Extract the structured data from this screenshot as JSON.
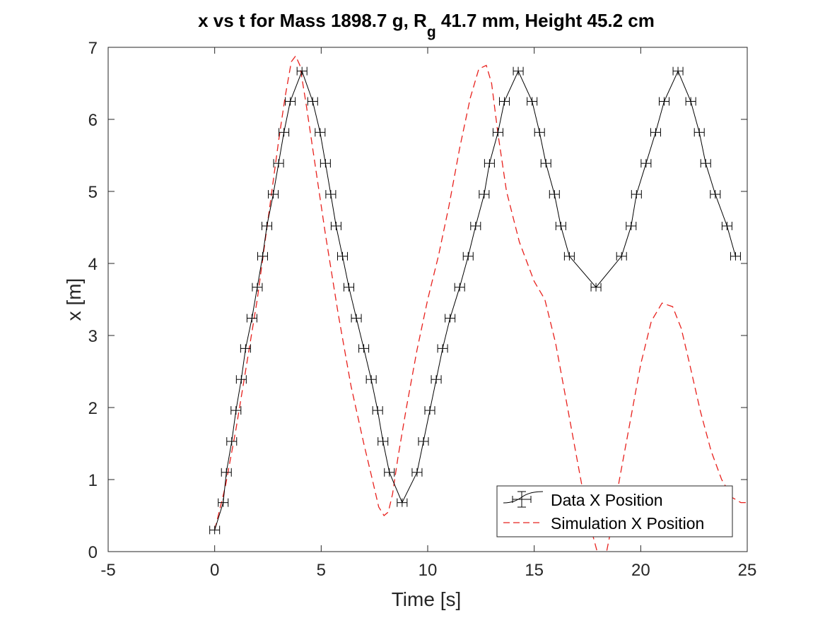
{
  "chart_data": {
    "type": "line",
    "title_main": "x vs t for Mass 1898.7 g, R",
    "title_sub": "g",
    "title_rest": " 41.7 mm,  Height 45.2 cm",
    "xlabel": "Time [s]",
    "ylabel": "x [m]",
    "xlim": [
      -5,
      25
    ],
    "ylim": [
      0,
      7
    ],
    "xticks": [
      "-5",
      "0",
      "5",
      "10",
      "15",
      "20",
      "25"
    ],
    "yticks": [
      "0",
      "1",
      "2",
      "3",
      "4",
      "5",
      "6",
      "7"
    ],
    "grid": false,
    "legend_position": "bottom-right",
    "series": [
      {
        "name": "Data X Position",
        "style": "solid-errorbar-markers",
        "color": "#000000",
        "x": [
          0.0,
          0.4,
          0.55,
          0.8,
          1.0,
          1.25,
          1.45,
          1.75,
          2.0,
          2.25,
          2.45,
          2.75,
          3.0,
          3.25,
          3.55,
          4.1,
          4.6,
          4.95,
          5.2,
          5.45,
          5.7,
          6.0,
          6.3,
          6.65,
          7.0,
          7.35,
          7.65,
          7.9,
          8.2,
          8.8,
          9.5,
          9.8,
          10.1,
          10.4,
          10.7,
          11.05,
          11.5,
          11.9,
          12.25,
          12.65,
          12.9,
          13.3,
          13.6,
          14.25,
          14.9,
          15.25,
          15.55,
          15.95,
          16.25,
          16.65,
          17.9,
          19.1,
          19.55,
          19.8,
          20.25,
          20.7,
          21.1,
          21.75,
          22.35,
          22.75,
          23.05,
          23.5,
          24.05,
          24.45
        ],
        "y": [
          0.3,
          0.68,
          1.1,
          1.53,
          1.96,
          2.39,
          2.82,
          3.24,
          3.67,
          4.1,
          4.52,
          4.96,
          5.39,
          5.82,
          6.25,
          6.67,
          6.25,
          5.82,
          5.39,
          4.96,
          4.52,
          4.1,
          3.67,
          3.24,
          2.82,
          2.39,
          1.96,
          1.53,
          1.1,
          0.68,
          1.1,
          1.53,
          1.96,
          2.39,
          2.82,
          3.24,
          3.67,
          4.1,
          4.52,
          4.96,
          5.39,
          5.82,
          6.25,
          6.67,
          6.25,
          5.82,
          5.39,
          4.96,
          4.52,
          4.1,
          3.67,
          4.1,
          4.52,
          4.96,
          5.39,
          5.82,
          6.25,
          6.67,
          6.25,
          5.82,
          5.39,
          4.96,
          4.52,
          4.1
        ]
      },
      {
        "name": "Simulation X Position",
        "style": "dashed",
        "color": "#e8201c",
        "x": [
          0.0,
          0.5,
          1.0,
          1.5,
          2.0,
          2.5,
          3.0,
          3.3,
          3.6,
          3.8,
          4.0,
          4.3,
          4.7,
          5.2,
          5.8,
          6.4,
          7.0,
          7.4,
          7.7,
          7.95,
          8.15,
          8.35,
          8.6,
          9.0,
          9.5,
          10.0,
          10.5,
          11.0,
          11.5,
          12.0,
          12.4,
          12.75,
          13.0,
          13.3,
          13.7,
          14.3,
          15.0,
          15.5,
          16.0,
          16.5,
          17.0,
          17.5,
          18.0,
          18.3,
          18.6,
          19.0,
          19.5,
          20.0,
          20.5,
          21.0,
          21.5,
          21.9,
          22.3,
          22.8,
          23.3,
          23.8,
          24.3,
          24.7,
          25.0
        ],
        "y": [
          0.3,
          0.9,
          1.7,
          2.6,
          3.5,
          4.6,
          5.7,
          6.3,
          6.8,
          6.88,
          6.75,
          6.2,
          5.4,
          4.4,
          3.3,
          2.3,
          1.5,
          1.0,
          0.62,
          0.5,
          0.55,
          0.8,
          1.3,
          2.0,
          2.8,
          3.5,
          4.1,
          4.8,
          5.6,
          6.3,
          6.7,
          6.75,
          6.5,
          5.8,
          5.0,
          4.3,
          3.75,
          3.5,
          2.9,
          2.1,
          1.3,
          0.5,
          -0.05,
          -0.15,
          0.3,
          1.0,
          1.8,
          2.6,
          3.2,
          3.45,
          3.4,
          3.1,
          2.6,
          1.95,
          1.4,
          1.0,
          0.75,
          0.68,
          0.68
        ]
      }
    ]
  }
}
